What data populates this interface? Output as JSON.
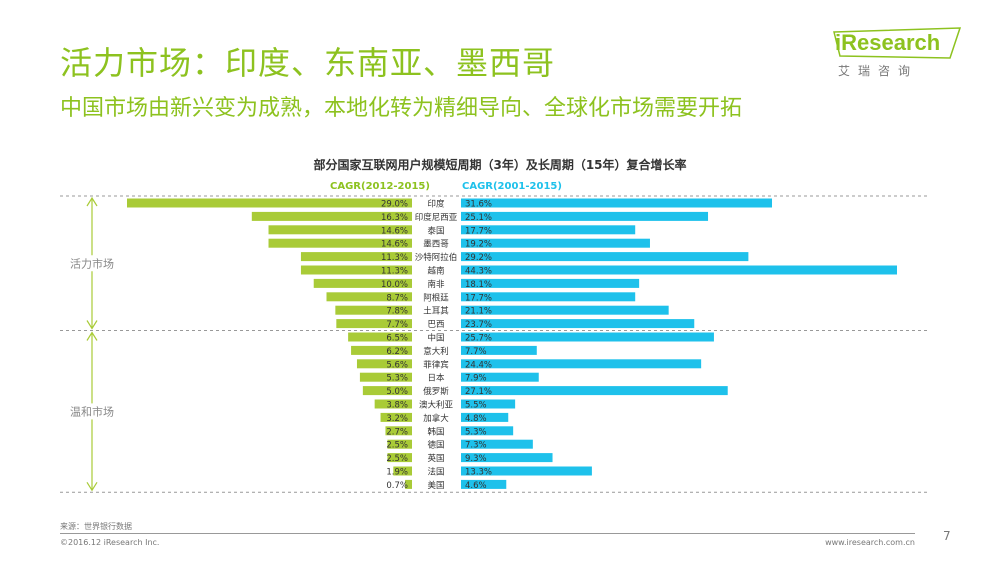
{
  "header": {
    "title": "活力市场：印度、东南亚、墨西哥",
    "subtitle": "中国市场由新兴变为成熟，本地化转为精细导向、全球化市场需要开拓"
  },
  "logo": {
    "name": "iResearch",
    "sub": "艾瑞咨询"
  },
  "footer": {
    "source": "来源：世界银行数据",
    "copyright": "©2016.12 iResearch Inc.",
    "url": "www.iresearch.com.cn",
    "page": "7"
  },
  "colors": {
    "left_bar": "#a9cb37",
    "right_bar": "#1ec1eb",
    "accent": "#8dc21f",
    "label_left": "#8dc21f",
    "label_right": "#1ec1eb"
  },
  "chart_data": {
    "type": "bar",
    "title": "部分国家互联网用户规模短周期（3年）及长周期（15年）复合增长率",
    "categories": [
      "印度",
      "印度尼西亚",
      "泰国",
      "墨西哥",
      "沙特阿拉伯",
      "越南",
      "南非",
      "阿根廷",
      "土耳其",
      "巴西",
      "中国",
      "意大利",
      "菲律宾",
      "日本",
      "俄罗斯",
      "澳大利亚",
      "加拿大",
      "韩国",
      "德国",
      "英国",
      "法国",
      "美国"
    ],
    "series": [
      {
        "name": "CAGR(2012-2015)",
        "values": [
          29.0,
          16.3,
          14.6,
          14.6,
          11.3,
          11.3,
          10.0,
          8.7,
          7.8,
          7.7,
          6.5,
          6.2,
          5.6,
          5.3,
          5.0,
          3.8,
          3.2,
          2.7,
          2.5,
          2.5,
          1.9,
          0.7
        ]
      },
      {
        "name": "CAGR(2001-2015)",
        "values": [
          31.6,
          25.1,
          17.7,
          19.2,
          29.2,
          44.3,
          18.1,
          17.7,
          21.1,
          23.7,
          25.7,
          7.7,
          24.4,
          7.9,
          27.1,
          5.5,
          4.8,
          5.3,
          7.3,
          9.3,
          13.3,
          4.6
        ]
      }
    ],
    "groups": [
      {
        "label": "活力市场",
        "start": 0,
        "end": 9
      },
      {
        "label": "温和市场",
        "start": 10,
        "end": 21
      }
    ],
    "unit": "%"
  }
}
